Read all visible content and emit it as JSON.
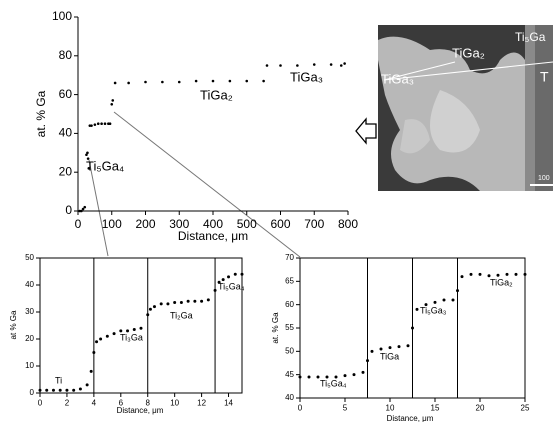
{
  "chart_data": [
    {
      "type": "scatter",
      "xlabel": "Distance, μm",
      "ylabel": "at. % Ga",
      "annotations": [
        "Ti₅Ga₄",
        "TiGa₂",
        "TiGa₃"
      ],
      "x": [
        5,
        10,
        15,
        20,
        25,
        28,
        30,
        32,
        35,
        40,
        50,
        60,
        70,
        80,
        90,
        95,
        100,
        103,
        110,
        150,
        200,
        250,
        300,
        350,
        400,
        450,
        500,
        550,
        560,
        600,
        650,
        700,
        750,
        780,
        790
      ],
      "values": [
        0,
        0,
        1,
        2,
        29,
        30,
        27,
        22,
        44,
        44,
        44.5,
        45,
        45,
        45,
        45,
        45,
        55,
        57,
        66,
        66,
        66.5,
        66.5,
        66.5,
        67,
        67,
        67,
        67,
        67,
        75,
        75,
        75,
        75.5,
        75.5,
        75,
        76
      ],
      "color": "#000000",
      "xlim": [
        0,
        800
      ],
      "ylim": [
        0,
        100
      ],
      "xticks": [
        0,
        100,
        200,
        300,
        400,
        500,
        600,
        700,
        800
      ],
      "yticks": [
        0,
        20,
        40,
        60,
        80,
        100
      ]
    },
    {
      "type": "scatter",
      "xlabel": "Distance, μm",
      "ylabel": "at % Ga",
      "annotations": [
        "Ti",
        "Ti₃Ga",
        "Ti₂Ga",
        "Ti₅Ga₄"
      ],
      "x": [
        0,
        0.5,
        1,
        1.5,
        2,
        2.5,
        3,
        3.5,
        3.8,
        4,
        4.2,
        4.5,
        5,
        5.5,
        6,
        6.5,
        7,
        7.5,
        8,
        8.2,
        8.5,
        9,
        9.5,
        10,
        10.5,
        11,
        11.5,
        12,
        12.5,
        13,
        13.3,
        13.6,
        14,
        14.5,
        15
      ],
      "values": [
        1,
        1,
        1,
        1,
        1,
        1,
        1.5,
        3,
        8,
        15,
        19,
        20,
        21,
        22,
        23,
        23,
        23.5,
        24,
        29,
        31,
        32,
        33,
        33,
        33.5,
        33.5,
        34,
        34,
        34,
        34.5,
        38,
        41,
        42,
        43,
        44,
        44
      ],
      "color": "#000000",
      "xlim": [
        0,
        15
      ],
      "ylim": [
        0,
        50
      ],
      "xticks": [
        0,
        2,
        4,
        6,
        8,
        10,
        12,
        14
      ],
      "yticks": [
        0,
        10,
        20,
        30,
        40,
        50
      ],
      "boundaries": [
        4,
        8,
        13
      ]
    },
    {
      "type": "scatter",
      "xlabel": "Distance, μm",
      "ylabel": "at. % Ga",
      "annotations": [
        "Ti₅Ga₄",
        "TiGa",
        "Ti₅Ga₃",
        "TiGa₂"
      ],
      "x": [
        0,
        1,
        2,
        3,
        4,
        5,
        6,
        7,
        7.5,
        8,
        9,
        10,
        11,
        12,
        12.5,
        13,
        14,
        15,
        16,
        17,
        17.5,
        18,
        19,
        20,
        21,
        22,
        23,
        24,
        25
      ],
      "values": [
        44.5,
        44.5,
        44.5,
        44.5,
        44.5,
        44.8,
        45,
        45.5,
        48,
        50,
        50.5,
        50.8,
        51,
        51.2,
        55,
        59,
        60,
        60.5,
        61,
        61,
        63,
        66,
        66.5,
        66.5,
        66.2,
        66.3,
        66.5,
        66.5,
        66.5
      ],
      "color": "#000000",
      "xlim": [
        0,
        25
      ],
      "ylim": [
        40,
        70
      ],
      "xticks": [
        0,
        5,
        10,
        15,
        20,
        25
      ],
      "yticks": [
        40,
        45,
        50,
        55,
        60,
        65,
        70
      ],
      "boundaries": [
        7.5,
        12.5,
        17.5
      ]
    }
  ],
  "micrograph": {
    "labels": [
      "Ti₅Ga",
      "TiGa₂",
      "TiGa₃",
      "T",
      "100"
    ]
  }
}
